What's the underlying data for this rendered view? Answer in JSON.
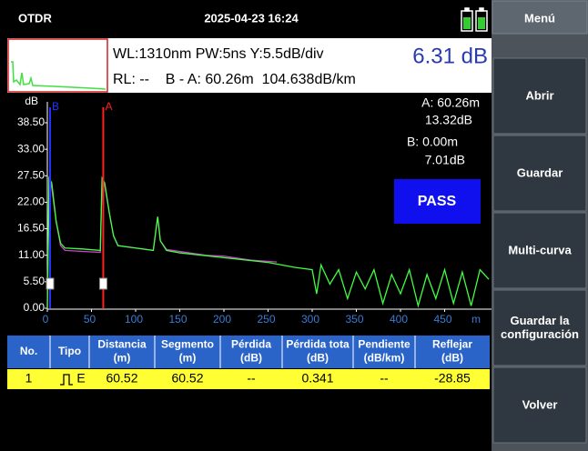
{
  "status_bar": {
    "app": "OTDR",
    "datetime": "2025-04-23 16:24"
  },
  "menu": {
    "title": "Menú",
    "buttons": [
      [
        "Abrir"
      ],
      [
        "Guardar"
      ],
      [
        "Multi-curva"
      ],
      [
        "Guardar la",
        "configuración"
      ],
      [
        "Volver"
      ]
    ]
  },
  "info": {
    "line1": "WL:1310nm PW:5ns Y:5.5dB/div",
    "line2": "RL: --    B - A: 60.26m  104.638dB/km",
    "loss": "6.31 dB"
  },
  "readout": {
    "a_pos": "A: 60.26m",
    "a_db": "13.32dB",
    "b_pos": "B: 0.00m",
    "b_db": "7.01dB",
    "verdict": "PASS"
  },
  "chart_data": {
    "type": "line",
    "y_label": "dB",
    "x_label": "m",
    "xlim": [
      0,
      500
    ],
    "ylim": [
      0,
      38.5
    ],
    "xticks": [
      0,
      50,
      100,
      150,
      200,
      250,
      300,
      350,
      400,
      450
    ],
    "yticks": [
      {
        "value": 0,
        "label": "0.00"
      },
      {
        "value": 5.5,
        "label": "5.50"
      },
      {
        "value": 11,
        "label": "11.00"
      },
      {
        "value": 16.5,
        "label": "16.50"
      },
      {
        "value": 22,
        "label": "22.00"
      },
      {
        "value": 27.5,
        "label": "27.50"
      },
      {
        "value": 33,
        "label": "33.00"
      },
      {
        "value": 38.5,
        "label": "38.50"
      }
    ],
    "markers": [
      {
        "name": "B",
        "x": 0,
        "color": "#2233ff"
      },
      {
        "name": "A",
        "x": 60.26,
        "color": "#ff2020"
      }
    ],
    "series": [
      {
        "color": "#d040d0",
        "x": [
          0,
          2,
          5,
          10,
          15,
          20,
          40,
          60,
          62,
          65,
          70,
          75,
          80,
          100,
          120,
          125,
          128,
          135,
          150,
          180,
          200,
          230,
          260
        ],
        "values": [
          0,
          27,
          25,
          18,
          13,
          12,
          11.8,
          11.6,
          27,
          25.5,
          20,
          15,
          13,
          12.5,
          12,
          19,
          14,
          12.2,
          11.8,
          11,
          10.8,
          10,
          9.6
        ]
      },
      {
        "color": "#40ff40",
        "x": [
          0,
          2,
          5,
          10,
          15,
          20,
          40,
          60,
          62,
          65,
          70,
          75,
          80,
          100,
          120,
          125,
          128,
          135,
          150,
          200,
          250,
          280,
          300,
          305,
          310,
          320,
          330,
          340,
          350,
          360,
          370,
          380,
          390,
          400,
          410,
          420,
          430,
          440,
          450,
          460,
          470,
          480,
          490,
          500
        ],
        "values": [
          0,
          27,
          26,
          18,
          13.5,
          12.5,
          12.3,
          12,
          27,
          26,
          20,
          15,
          13,
          12.5,
          12,
          19,
          14,
          12,
          11.5,
          10.5,
          9.5,
          8.5,
          8,
          3,
          9,
          5,
          8,
          2,
          7.5,
          4,
          8,
          1,
          7,
          3,
          8,
          0.5,
          7,
          2,
          8,
          1,
          7.5,
          0.5,
          8,
          6
        ]
      }
    ]
  },
  "table": {
    "headers": [
      [
        "No."
      ],
      [
        "Tipo"
      ],
      [
        "Distancia",
        "(m)"
      ],
      [
        "Segmento",
        "(m)"
      ],
      [
        "Pérdida",
        "(dB)"
      ],
      [
        "Pérdida tota",
        "(dB)"
      ],
      [
        "Pendiente",
        "(dB/km)"
      ],
      [
        "Reflejar",
        "(dB)"
      ]
    ],
    "rows": [
      [
        "1",
        "E",
        "60.52",
        "60.52",
        "--",
        "0.341",
        "--",
        "-28.85"
      ]
    ]
  }
}
